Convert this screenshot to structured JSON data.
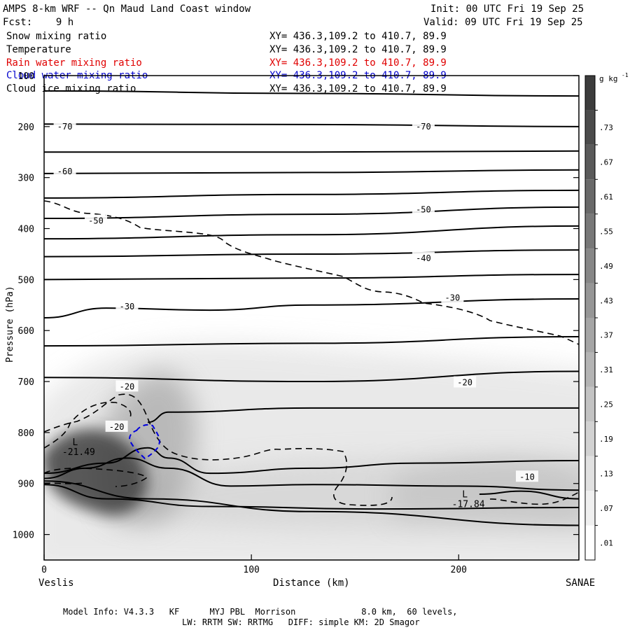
{
  "header": {
    "title": "AMPS 8-km WRF -- Qn Maud Land Coast window",
    "init": "Init: 00 UTC Fri 19 Sep 25",
    "forecast": "Fcst:    9 h",
    "valid": "Valid: 09 UTC Fri 19 Sep 25"
  },
  "fields": [
    {
      "name": "Snow mixing ratio",
      "xy": "XY= 436.3,109.2 to 410.7, 89.9",
      "color": "#000000"
    },
    {
      "name": "Temperature",
      "xy": "XY= 436.3,109.2 to 410.7, 89.9",
      "color": "#000000"
    },
    {
      "name": "Rain water mixing ratio",
      "xy": "XY= 436.3,109.2 to 410.7, 89.9",
      "color": "#e00000"
    },
    {
      "name": "Cloud water mixing ratio",
      "xy": "XY= 436.3,109.2 to 410.7, 89.9",
      "color": "#0000cc"
    },
    {
      "name": "Cloud ice mixing ratio",
      "xy": "XY= 436.3,109.2 to 410.7, 89.9",
      "color": "#000000"
    }
  ],
  "footer": {
    "line1": "Model Info: V4.3.3   KF      MYJ PBL  Morrison             8.0 km,  60 levels,",
    "line2": "LW: RRTM SW: RRTMG   DIFF: simple KM: 2D Smagor"
  },
  "chart_data": {
    "type": "contour cross-section",
    "xlabel": "Distance (km)",
    "ylabel": "Pressure (hPa)",
    "xlim": [
      0,
      258
    ],
    "ylim": [
      100,
      1050
    ],
    "x_ticks": [
      0,
      100,
      200
    ],
    "y_ticks": [
      100,
      200,
      300,
      400,
      500,
      600,
      700,
      800,
      900,
      1000
    ],
    "x_start_label": "Veslis",
    "x_end_label": "SANAE",
    "colorbar": {
      "unit": "g kg",
      "unit_exp": "-1",
      "levels": [
        ".01",
        ".07",
        ".13",
        ".19",
        ".25",
        ".31",
        ".37",
        ".43",
        ".49",
        ".55",
        ".61",
        ".67",
        ".73"
      ],
      "level_values": [
        0.01,
        0.07,
        0.13,
        0.19,
        0.25,
        0.31,
        0.37,
        0.43,
        0.49,
        0.55,
        0.61,
        0.67,
        0.73
      ]
    },
    "temperature_labels": [
      {
        "text": "-70",
        "x": 10,
        "p": 200
      },
      {
        "text": "-70",
        "x": 183,
        "p": 200
      },
      {
        "text": "-60",
        "x": 10,
        "p": 288
      },
      {
        "text": "-50",
        "x": 25,
        "p": 385
      },
      {
        "text": "-50",
        "x": 183,
        "p": 363
      },
      {
        "text": "-40",
        "x": 183,
        "p": 458
      },
      {
        "text": "-30",
        "x": 40,
        "p": 553
      },
      {
        "text": "-30",
        "x": 197,
        "p": 536
      },
      {
        "text": "-20",
        "x": 40,
        "p": 710
      },
      {
        "text": "-20",
        "x": 203,
        "p": 702
      },
      {
        "text": "-20",
        "x": 35,
        "p": 789
      },
      {
        "text": "-10",
        "x": 233,
        "p": 887
      }
    ],
    "lows": [
      {
        "symbol": "L",
        "value": "-21.49",
        "x": 15,
        "p": 825
      },
      {
        "symbol": "L",
        "value": "-17.84",
        "x": 203,
        "p": 927
      }
    ],
    "isotherm_levels": [
      -70,
      -60,
      -50,
      -40,
      -30,
      -20,
      -10
    ],
    "snow_max": 0.73,
    "series": [
      {
        "name": "isotherm",
        "values": [
          [
            0,
            130
          ],
          [
            128,
            135
          ],
          [
            258,
            140
          ]
        ]
      },
      {
        "name": "isotherm",
        "values": [
          [
            0,
            195
          ],
          [
            129,
            196
          ],
          [
            258,
            200
          ]
        ]
      },
      {
        "name": "isotherm",
        "values": [
          [
            0,
            250
          ],
          [
            129,
            250
          ],
          [
            258,
            248
          ]
        ]
      },
      {
        "name": "isotherm",
        "values": [
          [
            0,
            292
          ],
          [
            129,
            290
          ],
          [
            258,
            285
          ]
        ]
      },
      {
        "name": "isotherm",
        "values": [
          [
            0,
            340
          ],
          [
            129,
            333
          ],
          [
            258,
            325
          ]
        ]
      },
      {
        "name": "isotherm",
        "values": [
          [
            0,
            380
          ],
          [
            129,
            372
          ],
          [
            258,
            358
          ]
        ]
      },
      {
        "name": "isotherm",
        "values": [
          [
            0,
            420
          ],
          [
            129,
            412
          ],
          [
            258,
            395
          ]
        ]
      },
      {
        "name": "isotherm",
        "values": [
          [
            0,
            455
          ],
          [
            129,
            450
          ],
          [
            258,
            442
          ]
        ]
      },
      {
        "name": "isotherm",
        "values": [
          [
            0,
            500
          ],
          [
            129,
            497
          ],
          [
            258,
            490
          ]
        ]
      },
      {
        "name": "isotherm",
        "values": [
          [
            0,
            575
          ],
          [
            30,
            556
          ],
          [
            80,
            560
          ],
          [
            129,
            550
          ],
          [
            258,
            538
          ]
        ]
      },
      {
        "name": "isotherm",
        "values": [
          [
            0,
            630
          ],
          [
            129,
            625
          ],
          [
            258,
            612
          ]
        ]
      },
      {
        "name": "isotherm",
        "values": [
          [
            0,
            692
          ],
          [
            129,
            700
          ],
          [
            258,
            680
          ]
        ]
      },
      {
        "name": "isotherm",
        "values": [
          [
            50,
            780
          ],
          [
            60,
            760
          ],
          [
            129,
            752
          ],
          [
            258,
            752
          ]
        ]
      },
      {
        "name": "isotherm",
        "values": [
          [
            0,
            880
          ],
          [
            30,
            860
          ],
          [
            50,
            830
          ],
          [
            60,
            850
          ],
          [
            80,
            880
          ],
          [
            129,
            870
          ],
          [
            180,
            860
          ],
          [
            258,
            855
          ]
        ]
      },
      {
        "name": "isotherm",
        "values": [
          [
            0,
            890
          ],
          [
            20,
            870
          ],
          [
            40,
            850
          ],
          [
            60,
            870
          ],
          [
            90,
            905
          ],
          [
            130,
            902
          ],
          [
            200,
            905
          ],
          [
            258,
            913
          ]
        ]
      },
      {
        "name": "isotherm",
        "values": [
          [
            210,
            921
          ],
          [
            230,
            915
          ],
          [
            258,
            930
          ]
        ]
      },
      {
        "name": "isotherm",
        "values": [
          [
            0,
            902
          ],
          [
            30,
            930
          ],
          [
            80,
            945
          ],
          [
            160,
            950
          ],
          [
            258,
            947
          ]
        ]
      },
      {
        "name": "isotherm",
        "values": [
          [
            0,
            895
          ],
          [
            50,
            930
          ],
          [
            129,
            955
          ],
          [
            258,
            982
          ]
        ]
      }
    ]
  }
}
